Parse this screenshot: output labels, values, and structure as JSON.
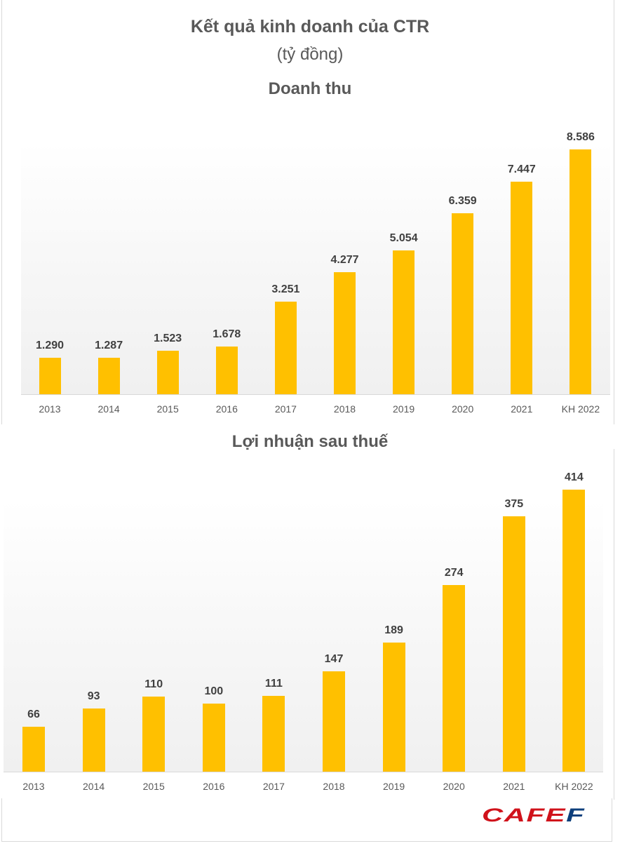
{
  "header": {
    "title": "Kết quả kinh doanh của CTR",
    "subtitle": "(tỷ đồng)"
  },
  "logo": {
    "main": "CAFE",
    "last": "F",
    "colors": {
      "main": "#d0121b",
      "last": "#0e3f7c"
    }
  },
  "chart_data": [
    {
      "type": "bar",
      "title": "Doanh thu",
      "xlabel": "",
      "ylabel": "tỷ đồng",
      "categories": [
        "2013",
        "2014",
        "2015",
        "2016",
        "2017",
        "2018",
        "2019",
        "2020",
        "2021",
        "KH 2022"
      ],
      "values": [
        1290,
        1287,
        1523,
        1678,
        3251,
        4277,
        5054,
        6359,
        7447,
        8586
      ],
      "labels": [
        "1.290",
        "1.287",
        "1.523",
        "1.678",
        "3.251",
        "4.277",
        "5.054",
        "6.359",
        "7.447",
        "8.586"
      ],
      "ylim": [
        0,
        9000
      ],
      "grid": false,
      "legend": "none",
      "bar_color": "#ffc000"
    },
    {
      "type": "bar",
      "title": "Lợi nhuận sau thuế",
      "xlabel": "",
      "ylabel": "tỷ đồng",
      "categories": [
        "2013",
        "2014",
        "2015",
        "2016",
        "2017",
        "2018",
        "2019",
        "2020",
        "2021",
        "KH 2022"
      ],
      "values": [
        66,
        93,
        110,
        100,
        111,
        147,
        189,
        274,
        375,
        414
      ],
      "labels": [
        "66",
        "93",
        "110",
        "100",
        "111",
        "147",
        "189",
        "274",
        "375",
        "414"
      ],
      "ylim": [
        0,
        420
      ],
      "grid": false,
      "legend": "none",
      "bar_color": "#ffc000"
    }
  ]
}
